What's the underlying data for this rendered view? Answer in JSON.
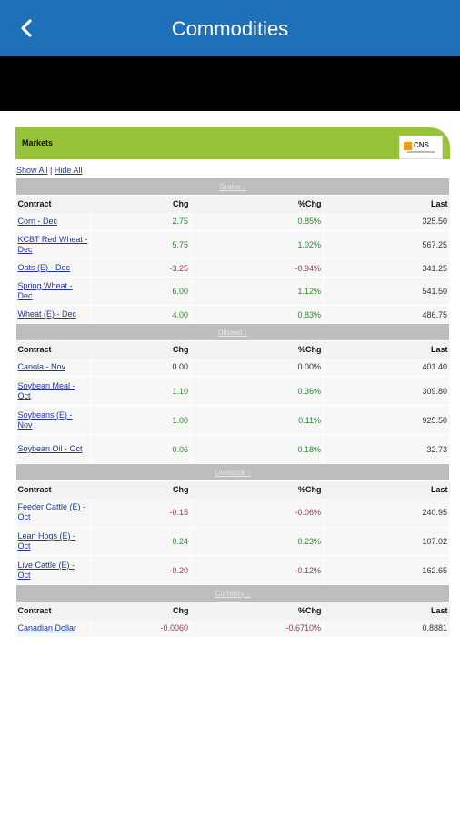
{
  "header": {
    "title": "Commodities",
    "back_icon": "chevron-left-icon"
  },
  "markets": {
    "title": "Markets",
    "logo_text": "CNS",
    "show_all": "Show All",
    "separator": "|",
    "hide_all": "Hide All"
  },
  "columns": {
    "contract": "Contract",
    "chg": "Chg",
    "pct_chg": "%Chg",
    "last": "Last"
  },
  "sections": [
    {
      "name": "Grains",
      "rows": [
        {
          "contract": "Corn - Dec",
          "chg": "2.75",
          "pct": "0.85%",
          "last": "325.50",
          "dir": "pos"
        },
        {
          "contract": "KCBT Red Wheat - Dec",
          "chg": "5.75",
          "pct": "1.02%",
          "last": "567.25",
          "dir": "pos"
        },
        {
          "contract": "Oats (E) - Dec",
          "chg": "-3.25",
          "pct": "-0.94%",
          "last": "341.25",
          "dir": "neg"
        },
        {
          "contract": "Spring Wheat - Dec",
          "chg": "6.00",
          "pct": "1.12%",
          "last": "541.50",
          "dir": "pos"
        },
        {
          "contract": "Wheat (E) - Dec",
          "chg": "4.00",
          "pct": "0.83%",
          "last": "486.75",
          "dir": "pos"
        }
      ]
    },
    {
      "name": "Oilseed",
      "rows": [
        {
          "contract": "Canola - Nov",
          "chg": "0.00",
          "pct": "0.00%",
          "last": "401.40",
          "dir": "neu"
        },
        {
          "contract": "Soybean Meal - Oct",
          "chg": "1.10",
          "pct": "0.36%",
          "last": "309.80",
          "dir": "pos"
        },
        {
          "contract": "Soybeans (E) - Nov",
          "chg": "1.00",
          "pct": "0.11%",
          "last": "925.50",
          "dir": "pos"
        },
        {
          "contract": "Soybean Oil - Oct",
          "chg": "0.06",
          "pct": "0.18%",
          "last": "32.73",
          "dir": "pos"
        }
      ]
    },
    {
      "name": "Livestock",
      "rows": [
        {
          "contract": "Feeder Cattle (E) - Oct",
          "chg": "-0.15",
          "pct": "-0.06%",
          "last": "240.95",
          "dir": "neg"
        },
        {
          "contract": "Lean Hogs (E) - Oct",
          "chg": "0.24",
          "pct": "0.23%",
          "last": "107.02",
          "dir": "pos"
        },
        {
          "contract": "Live Cattle (E) - Oct",
          "chg": "-0.20",
          "pct": "-0.12%",
          "last": "162.65",
          "dir": "neg"
        }
      ]
    },
    {
      "name": "Currency",
      "rows": [
        {
          "contract": "Canadian Dollar",
          "chg": "-0.0060",
          "pct": "-0.6710%",
          "last": "0.8881",
          "dir": "neg"
        }
      ]
    }
  ],
  "colors": {
    "header_blue": "#1e71b8",
    "markets_green": "#97c33b",
    "positive": "#2a8a2a",
    "negative": "#9a3a4a"
  }
}
